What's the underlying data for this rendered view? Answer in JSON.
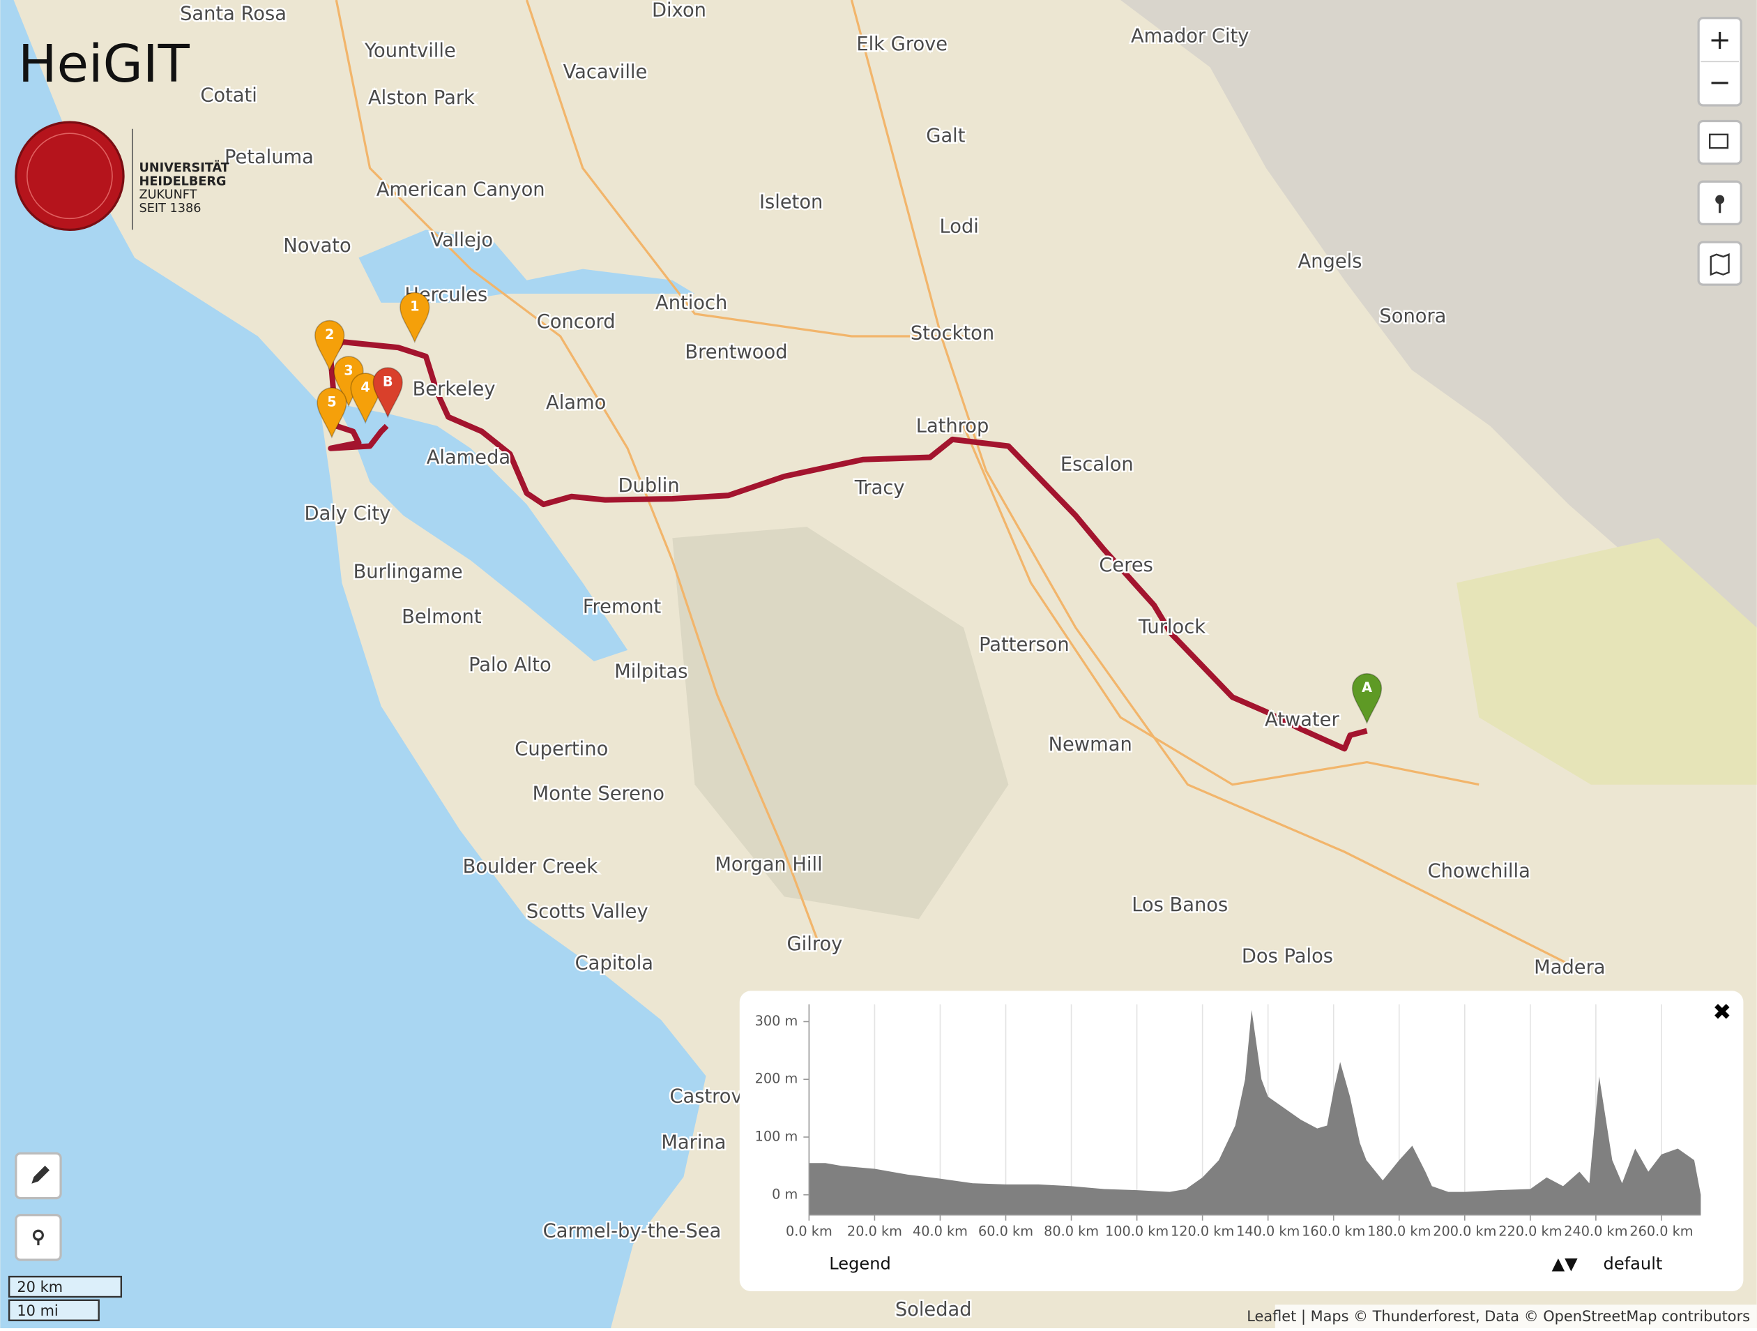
{
  "logo": {
    "title": "HeiGIT",
    "university": [
      "UNIVERSITÄT",
      "HEIDELBERG",
      "ZUKUNFT",
      "SEIT 1386"
    ]
  },
  "places": [
    "Santa Rosa",
    "Dixon",
    "Yountville",
    "Elk Grove",
    "Amador City",
    "Vacaville",
    "Cotati",
    "Alston Park",
    "Galt",
    "Petaluma",
    "American Canyon",
    "Isleton",
    "Lodi",
    "Novato",
    "Vallejo",
    "Angels",
    "Hercules",
    "Antioch",
    "Concord",
    "Sonora",
    "Stockton",
    "Brentwood",
    "Berkeley",
    "Alamo",
    "Lathrop",
    "Alameda",
    "Escalon",
    "Dublin",
    "Tracy",
    "Daly City",
    "Ceres",
    "Burlingame",
    "Fremont",
    "Belmont",
    "Turlock",
    "Patterson",
    "Palo Alto",
    "Milpitas",
    "Atwater",
    "Newman",
    "Cupertino",
    "Monte Sereno",
    "Boulder Creek",
    "Morgan Hill",
    "Chowchilla",
    "Los Banos",
    "Scotts Valley",
    "Gilroy",
    "Dos Palos",
    "Madera",
    "Capitola",
    "Castrov",
    "Marina",
    "Carmel-by-the-Sea",
    "Soledad"
  ],
  "markers": [
    "1",
    "2",
    "3",
    "4",
    "5",
    "B",
    "A"
  ],
  "controls": {
    "zoom_in": "+",
    "zoom_out": "−"
  },
  "scale": {
    "metric": "20 km",
    "imperial": "10 mi"
  },
  "attribution": "Leaflet | Maps © Thunderforest, Data © OpenStreetMap contributors",
  "chart_data": {
    "type": "area",
    "color": "#808080",
    "x": [
      0,
      5,
      10,
      20,
      30,
      40,
      50,
      60,
      70,
      80,
      90,
      100,
      110,
      115,
      120,
      125,
      130,
      133,
      135,
      138,
      140,
      145,
      150,
      155,
      158,
      160,
      162,
      165,
      168,
      170,
      175,
      180,
      184,
      188,
      190,
      195,
      200,
      210,
      220,
      225,
      230,
      235,
      238,
      241,
      245,
      248,
      252,
      256,
      260,
      265,
      270,
      272
    ],
    "values": [
      55,
      55,
      50,
      45,
      35,
      28,
      20,
      18,
      18,
      15,
      10,
      8,
      5,
      10,
      30,
      60,
      120,
      200,
      320,
      200,
      170,
      150,
      130,
      115,
      120,
      180,
      230,
      170,
      90,
      60,
      25,
      60,
      85,
      40,
      15,
      5,
      5,
      8,
      10,
      30,
      15,
      40,
      20,
      205,
      60,
      20,
      80,
      40,
      70,
      80,
      60,
      0
    ],
    "xlim": [
      0,
      272
    ],
    "ylim": [
      -35,
      330
    ],
    "xticks": [
      {
        "value": 0,
        "label": "0.0 km"
      },
      {
        "value": 20,
        "label": "20.0 km"
      },
      {
        "value": 40,
        "label": "40.0 km"
      },
      {
        "value": 60,
        "label": "60.0 km"
      },
      {
        "value": 80,
        "label": "80.0 km"
      },
      {
        "value": 100,
        "label": "100.0 km"
      },
      {
        "value": 120,
        "label": "120.0 km"
      },
      {
        "value": 140,
        "label": "140.0 km"
      },
      {
        "value": 160,
        "label": "160.0 km"
      },
      {
        "value": 180,
        "label": "180.0 km"
      },
      {
        "value": 200,
        "label": "200.0 km"
      },
      {
        "value": 220,
        "label": "220.0 km"
      },
      {
        "value": 240,
        "label": "240.0 km"
      },
      {
        "value": 260,
        "label": "260.0 km"
      }
    ],
    "yticks": [
      {
        "value": 0,
        "label": "0 m"
      },
      {
        "value": 100,
        "label": "100 m"
      },
      {
        "value": 200,
        "label": "200 m"
      },
      {
        "value": 300,
        "label": "300 m"
      }
    ],
    "grid": true,
    "legend_title": "Legend",
    "legend_toggle": "▲▼",
    "series_name": "default"
  }
}
